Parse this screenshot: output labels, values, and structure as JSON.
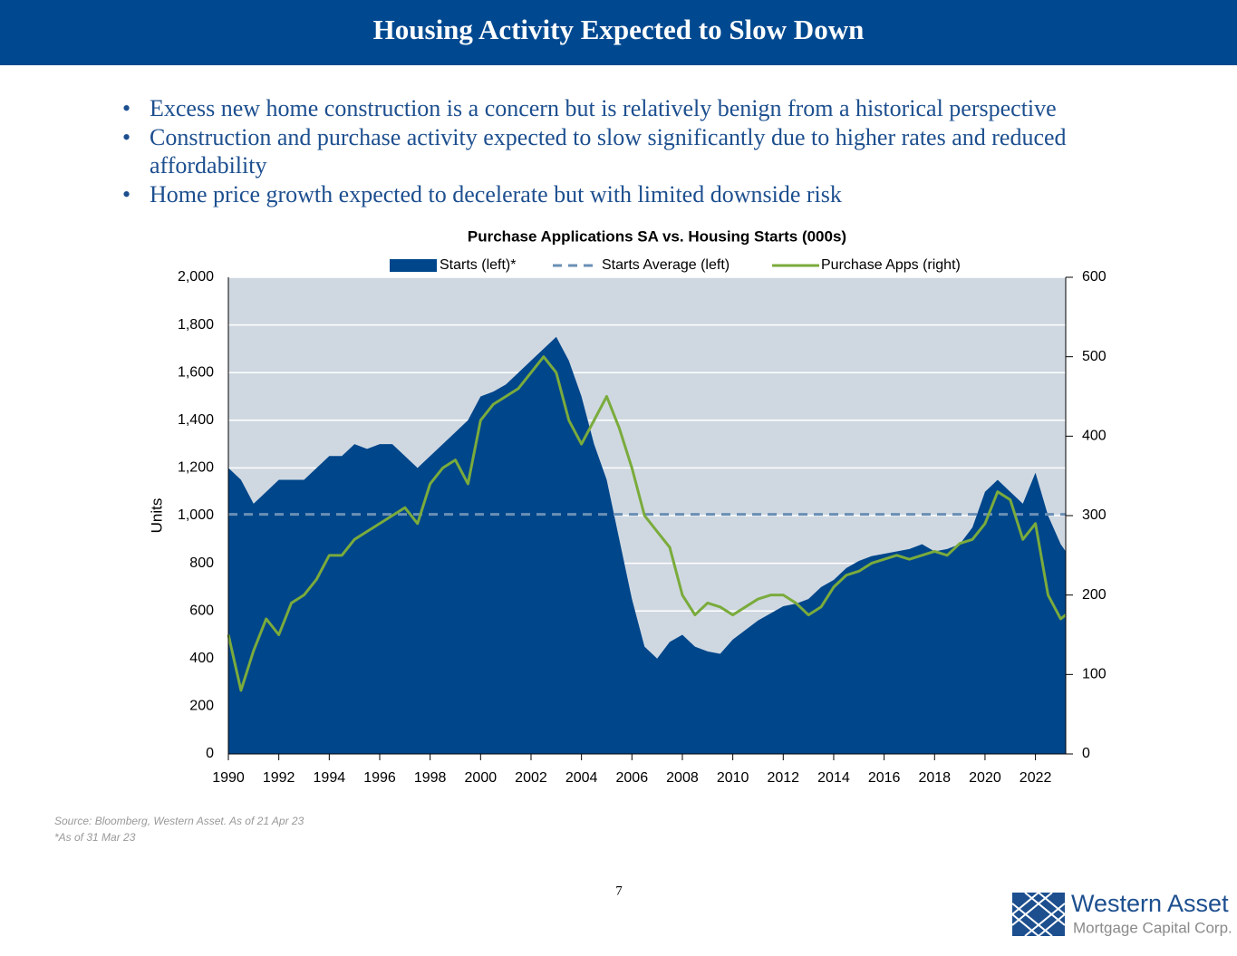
{
  "header": {
    "title": "Housing Activity Expected to Slow Down"
  },
  "bullets": [
    "Excess new home construction is a concern but is relatively benign from a historical perspective",
    "Construction and purchase activity expected to slow significantly due to higher rates and reduced",
    "affordability",
    "Home price growth expected to decelerate but with limited downside risk"
  ],
  "chart_data": {
    "type": "combo",
    "title": "Purchase Applications SA vs. Housing Starts (000s)",
    "y_label": "Units",
    "x": [
      1990,
      1990.5,
      1991,
      1991.5,
      1992,
      1992.5,
      1993,
      1993.5,
      1994,
      1994.5,
      1995,
      1995.5,
      1996,
      1996.5,
      1997,
      1997.5,
      1998,
      1998.5,
      1999,
      1999.5,
      2000,
      2000.5,
      2001,
      2001.5,
      2002,
      2002.5,
      2003,
      2003.5,
      2004,
      2004.5,
      2005,
      2005.5,
      2006,
      2006.5,
      2007,
      2007.5,
      2008,
      2008.5,
      2009,
      2009.5,
      2010,
      2010.5,
      2011,
      2011.5,
      2012,
      2012.5,
      2013,
      2013.5,
      2014,
      2014.5,
      2015,
      2015.5,
      2016,
      2016.5,
      2017,
      2017.5,
      2018,
      2018.5,
      2019,
      2019.5,
      2020,
      2020.5,
      2021,
      2021.5,
      2022,
      2022.5,
      2023,
      2023.2
    ],
    "series": [
      {
        "name": "Starts (left)*",
        "kind": "area",
        "axis": "y",
        "color": "#00468b",
        "values": [
          1200,
          1150,
          1050,
          1100,
          1150,
          1150,
          1150,
          1200,
          1250,
          1250,
          1300,
          1280,
          1300,
          1300,
          1250,
          1200,
          1250,
          1300,
          1350,
          1400,
          1500,
          1520,
          1550,
          1600,
          1650,
          1700,
          1750,
          1650,
          1500,
          1300,
          1150,
          900,
          650,
          450,
          400,
          470,
          500,
          450,
          430,
          420,
          480,
          520,
          560,
          590,
          620,
          630,
          650,
          700,
          730,
          780,
          810,
          830,
          840,
          850,
          860,
          880,
          850,
          860,
          880,
          950,
          1100,
          1150,
          1100,
          1050,
          1180,
          1000,
          880,
          850
        ]
      },
      {
        "name": "Purchase Apps (right)",
        "kind": "line",
        "axis": "y2",
        "color": "#7aab3c",
        "values": [
          150,
          80,
          130,
          170,
          150,
          190,
          200,
          220,
          250,
          250,
          270,
          280,
          290,
          300,
          310,
          290,
          340,
          360,
          370,
          340,
          420,
          440,
          450,
          460,
          480,
          500,
          480,
          420,
          390,
          420,
          450,
          410,
          360,
          300,
          280,
          260,
          200,
          175,
          190,
          185,
          175,
          185,
          195,
          200,
          200,
          190,
          175,
          185,
          210,
          225,
          230,
          240,
          245,
          250,
          245,
          250,
          255,
          250,
          265,
          270,
          290,
          330,
          320,
          270,
          290,
          200,
          170,
          175
        ]
      }
    ],
    "reference_line": {
      "name": "Starts Average (left)",
      "value": 1005,
      "color": "#6a8fb5"
    },
    "xlim": [
      1990,
      2023.2
    ],
    "xticks": [
      1990,
      1992,
      1994,
      1996,
      1998,
      2000,
      2002,
      2004,
      2006,
      2008,
      2010,
      2012,
      2014,
      2016,
      2018,
      2020,
      2022
    ],
    "ylim": [
      0,
      2000
    ],
    "yticks": [
      0,
      200,
      400,
      600,
      800,
      {
        "value": 1000,
        "label": "1,000"
      },
      {
        "value": 1200,
        "label": "1,200"
      },
      {
        "value": 1400,
        "label": "1,400"
      },
      {
        "value": 1600,
        "label": "1,600"
      },
      {
        "value": 1800,
        "label": "1,800"
      },
      {
        "value": 2000,
        "label": "2,000"
      }
    ],
    "y2lim": [
      0,
      600
    ],
    "y2ticks": [
      0,
      100,
      200,
      300,
      400,
      500,
      600
    ],
    "grid": true
  },
  "footnotes": [
    "Source: Bloomberg, Western Asset. As of 21 Apr 23",
    "*As of 31 Mar 23"
  ],
  "page_number": "7",
  "logo": {
    "name": "Western Asset",
    "subtitle": "Mortgage Capital Corp."
  }
}
